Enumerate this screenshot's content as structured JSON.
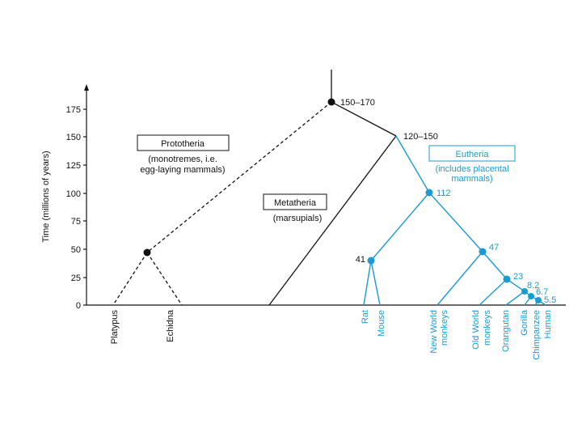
{
  "axis": {
    "ylabel": "Time (millions of years)",
    "ticks": [
      "0",
      "25",
      "50",
      "75",
      "100",
      "125",
      "150",
      "175"
    ]
  },
  "groups": {
    "prototheria": {
      "title": "Prototheria",
      "desc_line1": "(monotremes, i.e.",
      "desc_line2": "egg-laying mammals)"
    },
    "metatheria": {
      "title": "Metatheria",
      "desc": "(marsupials)"
    },
    "eutheria": {
      "title": "Eutheria",
      "desc_line1": "(includes placental",
      "desc_line2": "mammals)"
    }
  },
  "nodes": {
    "root": "150–170",
    "split": "120–150",
    "eutheria": "112",
    "rodents": "41",
    "primates": "47",
    "apes": "23",
    "gorilla": "8.2",
    "chimp": "6.7",
    "human": "5.5"
  },
  "leaves": {
    "platypus": "Platypus",
    "echidna": "Echidna",
    "rat": "Rat",
    "mouse": "Mouse",
    "new_world_1": "New World",
    "new_world_2": "monkeys",
    "old_world_1": "Old World",
    "old_world_2": "monkeys",
    "orangutan": "Orangutan",
    "gorilla": "Gorilla",
    "chimpanzee": "Chimpanzee",
    "human": "Human"
  },
  "colors": {
    "black": "#111111",
    "blue": "#1a9bd1"
  }
}
